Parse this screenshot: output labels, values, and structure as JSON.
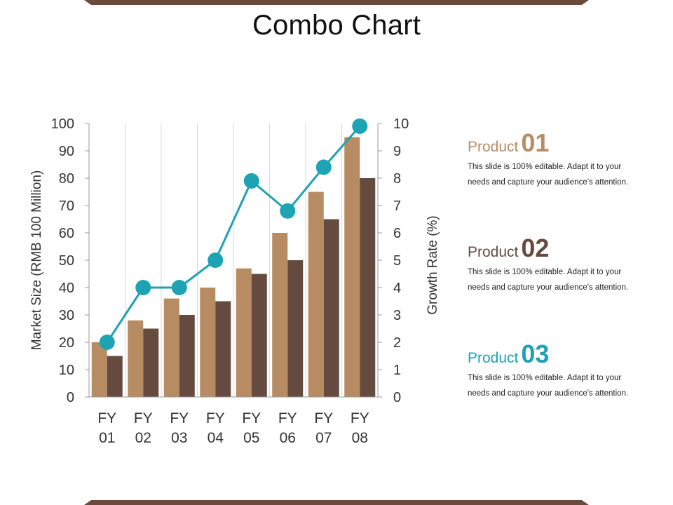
{
  "title": "Combo Chart",
  "colors": {
    "band": "#6b4a3c",
    "bar_light": "#b88c63",
    "bar_dark": "#654b3f",
    "line": "#1da3b3",
    "grid": "#d9d9d9",
    "axis": "#999999"
  },
  "chart_data": {
    "type": "bar",
    "categories": [
      "FY 01",
      "FY 02",
      "FY 03",
      "FY 04",
      "FY 05",
      "FY 06",
      "FY 07",
      "FY 08"
    ],
    "category_lines": [
      [
        "FY",
        "01"
      ],
      [
        "FY",
        "02"
      ],
      [
        "FY",
        "03"
      ],
      [
        "FY",
        "04"
      ],
      [
        "FY",
        "05"
      ],
      [
        "FY",
        "06"
      ],
      [
        "FY",
        "07"
      ],
      [
        "FY",
        "08"
      ]
    ],
    "series": [
      {
        "type": "bar",
        "axis": "left",
        "color": "#b88c63",
        "values": [
          20,
          28,
          36,
          40,
          47,
          60,
          75,
          95
        ]
      },
      {
        "type": "bar",
        "axis": "left",
        "color": "#654b3f",
        "values": [
          15,
          25,
          30,
          35,
          45,
          50,
          65,
          80
        ]
      },
      {
        "type": "line",
        "axis": "right",
        "color": "#1da3b3",
        "values": [
          2,
          4,
          4,
          5,
          7.9,
          6.8,
          8.4,
          9.9
        ]
      }
    ],
    "ylabel": "Market Size (RMB 100 Million)",
    "y2label": "Growth Rate (%)",
    "ylim": [
      0,
      100
    ],
    "y2lim": [
      0,
      10
    ],
    "yticks": [
      "0",
      "10",
      "20",
      "30",
      "40",
      "50",
      "60",
      "70",
      "80",
      "90",
      "100"
    ],
    "y2ticks": [
      "0",
      "1",
      "2",
      "3",
      "4",
      "5",
      "6",
      "7",
      "8",
      "9",
      "10"
    ],
    "grid": "vertical"
  },
  "products": [
    {
      "name": "Product",
      "number": "01",
      "color": "#b88c63",
      "desc": [
        "This slide is 100% editable. Adapt it to your",
        "needs and capture your audience's attention."
      ]
    },
    {
      "name": "Product",
      "number": "02",
      "color": "#654b3f",
      "desc": [
        "This slide is 100% editable. Adapt it to your",
        "needs and capture your audience's attention."
      ]
    },
    {
      "name": "Product",
      "number": "03",
      "color": "#1da3b3",
      "desc": [
        "This slide is 100% editable. Adapt it to your",
        "needs and capture your audience's attention."
      ]
    }
  ]
}
